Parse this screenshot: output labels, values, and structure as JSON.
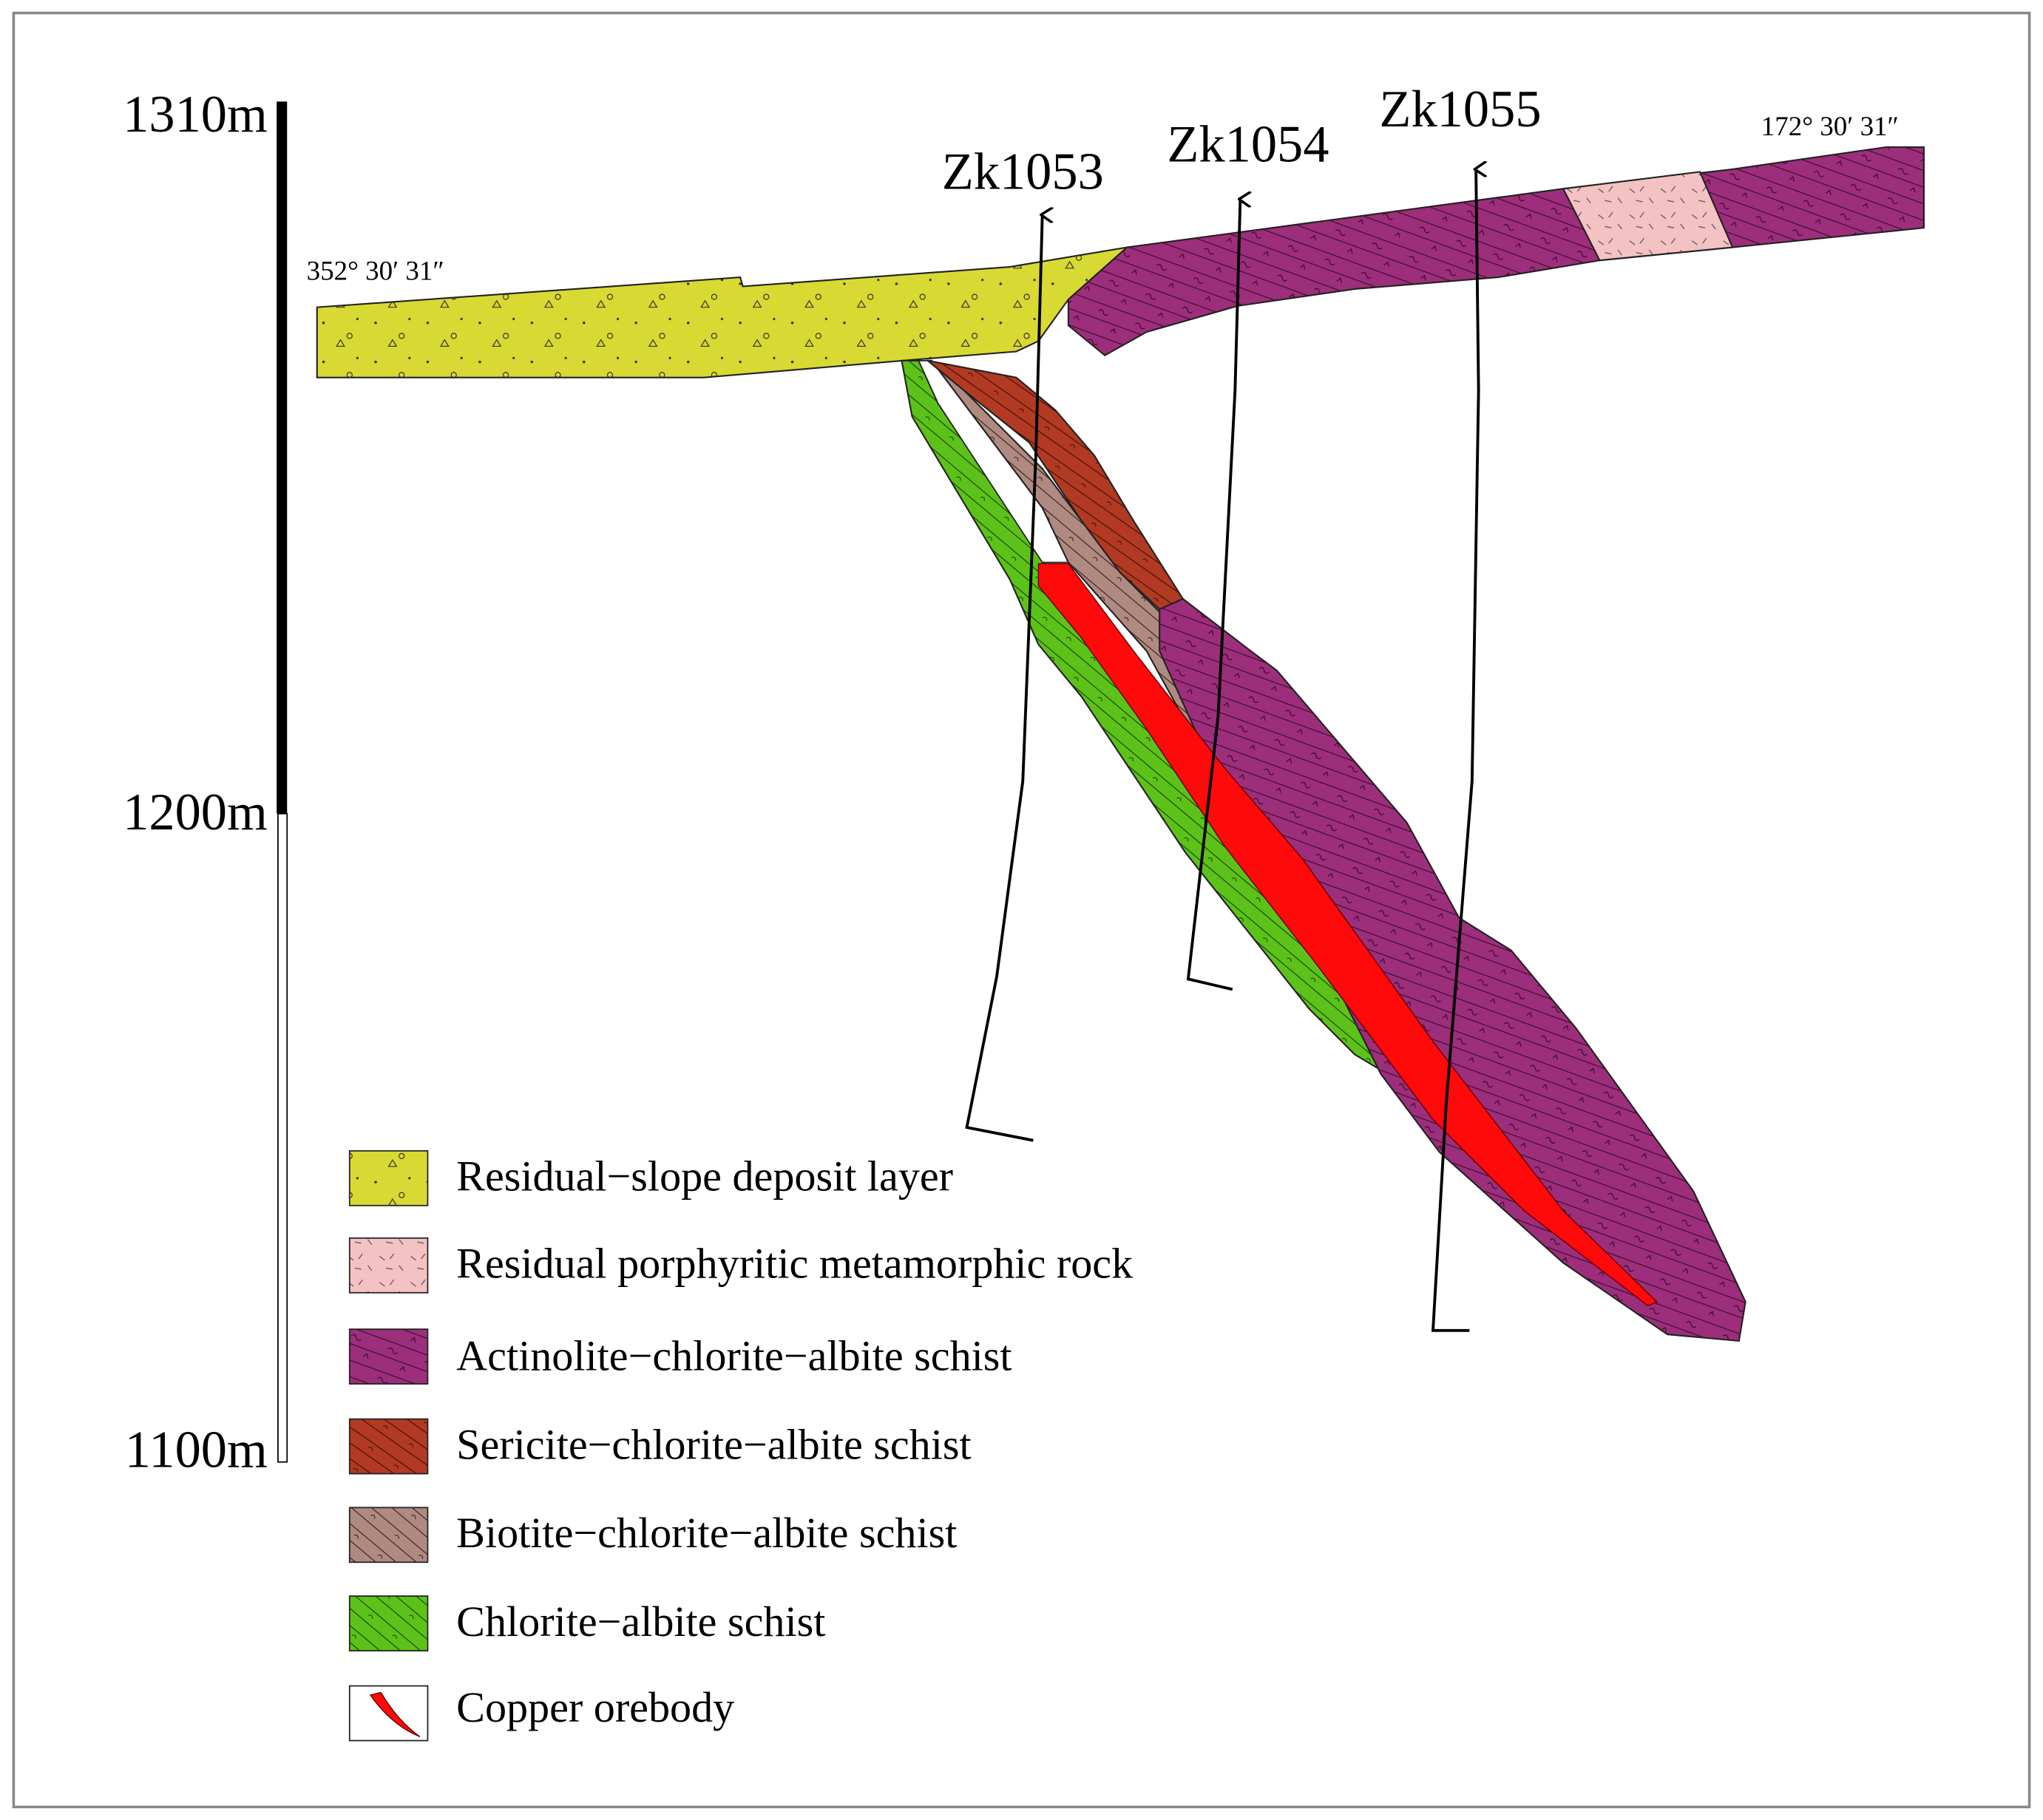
{
  "scale_bar": {
    "labels": [
      "1310m",
      "1200m",
      "1100m"
    ]
  },
  "bearings": {
    "left": "352° 30′ 31″",
    "right": "172° 30′ 31″"
  },
  "drill_holes": [
    {
      "label": "Zk1053"
    },
    {
      "label": "Zk1054"
    },
    {
      "label": "Zk1055"
    }
  ],
  "legend": [
    {
      "label": "Residual−slope deposit layer"
    },
    {
      "label": "Residual porphyritic metamorphic rock"
    },
    {
      "label": "Actinolite−chlorite−albite schist"
    },
    {
      "label": "Sericite−chlorite−albite schist"
    },
    {
      "label": "Biotite−chlorite−albite schist"
    },
    {
      "label": "Chlorite−albite schist"
    },
    {
      "label": "Copper orebody"
    }
  ]
}
